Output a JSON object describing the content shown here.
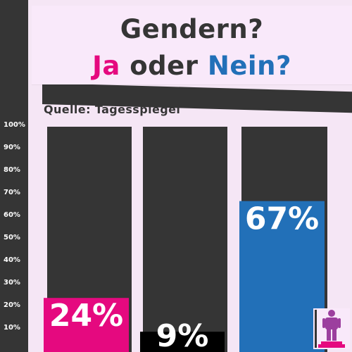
{
  "header": {
    "title_line1": "Gendern?",
    "title_ja": "Ja",
    "title_oder": "oder",
    "title_nein": "Nein?",
    "source": "Quelle: Tagesspiegel"
  },
  "colors": {
    "background": "#f5e6f5",
    "dark": "#353535",
    "ja": "#e5097f",
    "neutral": "#000000",
    "nein": "#2270b8",
    "icon_fill": "#9c3f9e",
    "icon_base": "#e5097f"
  },
  "icon": "person-on-podium-icon",
  "chart_data": {
    "type": "bar",
    "categories": [
      "",
      "",
      ""
    ],
    "values": [
      24,
      9,
      67
    ],
    "value_labels": [
      "24%",
      "9%",
      "67%"
    ],
    "bar_colors": [
      "#e5097f",
      "#000000",
      "#2270b8"
    ],
    "ylim": [
      0,
      100
    ],
    "yticks": [
      "10%",
      "20%",
      "30%",
      "40%",
      "50%",
      "60%",
      "70%",
      "80%",
      "90%",
      "100%"
    ],
    "title": "Gendern? Ja oder Nein?",
    "source": "Quelle: Tagesspiegel",
    "grid": false,
    "legend": "none"
  }
}
